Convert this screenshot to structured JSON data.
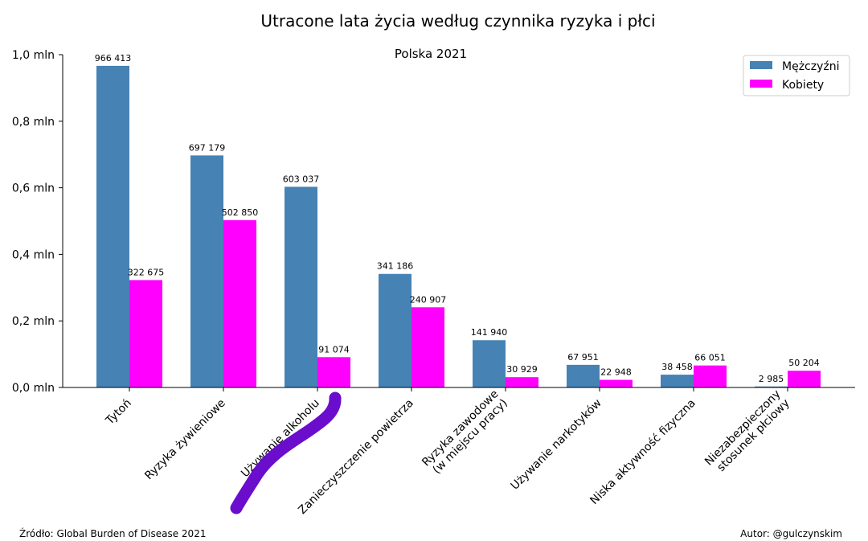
{
  "chart_data": {
    "type": "bar",
    "title": "Utracone lata życia według czynnika ryzyka i płci",
    "subtitle": "Polska 2021",
    "categories": [
      [
        "Tytoń"
      ],
      [
        "Ryzyka żywieniowe"
      ],
      [
        "Używanie alkoholu"
      ],
      [
        "Zanieczyszczenie powietrza"
      ],
      [
        "Ryzyka zawodowe",
        "(w miejscu pracy)"
      ],
      [
        "Używanie narkotyków"
      ],
      [
        "Niska aktywność fizyczna"
      ],
      [
        "Niezabezpieczony",
        "stosunek płciowy"
      ]
    ],
    "series": [
      {
        "name": "Mężczyźni",
        "color": "#4682b4",
        "values": [
          966413,
          697179,
          603037,
          341186,
          141940,
          67951,
          38458,
          2985
        ],
        "labels": [
          "966 413",
          "697 179",
          "603 037",
          "341 186",
          "141 940",
          "67 951",
          "38 458",
          "2 985"
        ]
      },
      {
        "name": "Kobiety",
        "color": "#ff00ff",
        "values": [
          322675,
          502850,
          91074,
          240907,
          30929,
          22948,
          66051,
          50204
        ],
        "labels": [
          "322 675",
          "502 850",
          "91 074",
          "240 907",
          "30 929",
          "22 948",
          "66 051",
          "50 204"
        ]
      }
    ],
    "ylim": [
      0,
      1000000
    ],
    "yticks": [
      0,
      200000,
      400000,
      600000,
      800000,
      1000000
    ],
    "ytick_labels": [
      "0,0 mln",
      "0,2 mln",
      "0,4 mln",
      "0,6 mln",
      "0,8 mln",
      "1,0 mln"
    ],
    "legend_position": "top-right",
    "grid": false,
    "annotation_stroke_color": "#6a0dcc"
  },
  "footer": {
    "source": "Źródło: Global Burden of Disease 2021",
    "author": "Autor: @gulczynskim"
  }
}
